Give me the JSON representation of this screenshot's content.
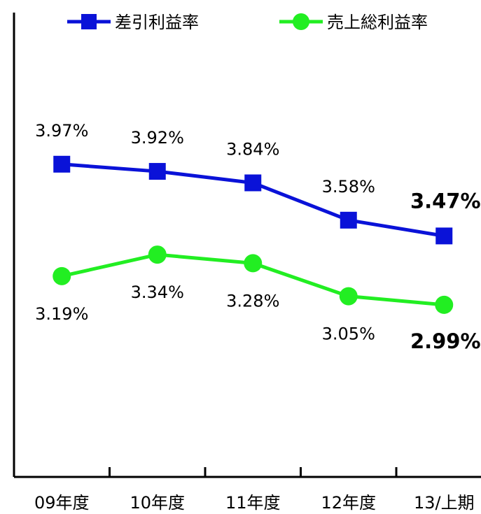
{
  "chart_data": {
    "type": "line",
    "categories": [
      "09年度",
      "10年度",
      "11年度",
      "12年度",
      "13/上期"
    ],
    "series": [
      {
        "name": "差引利益率",
        "values": [
          3.97,
          3.92,
          3.84,
          3.58,
          3.47
        ],
        "labels": [
          "3.97%",
          "3.92%",
          "3.84%",
          "3.58%",
          "3.47%"
        ],
        "color": "#0a12d8",
        "marker": "square"
      },
      {
        "name": "売上総利益率",
        "values": [
          3.19,
          3.34,
          3.28,
          3.05,
          2.99
        ],
        "labels": [
          "3.19%",
          "3.34%",
          "3.28%",
          "3.05%",
          "2.99%"
        ],
        "color": "#22ee22",
        "marker": "circle"
      }
    ],
    "ylim": [
      2.2,
      4.7
    ],
    "grid": false,
    "legend_position": "top",
    "emphasized_category_index": 4
  }
}
